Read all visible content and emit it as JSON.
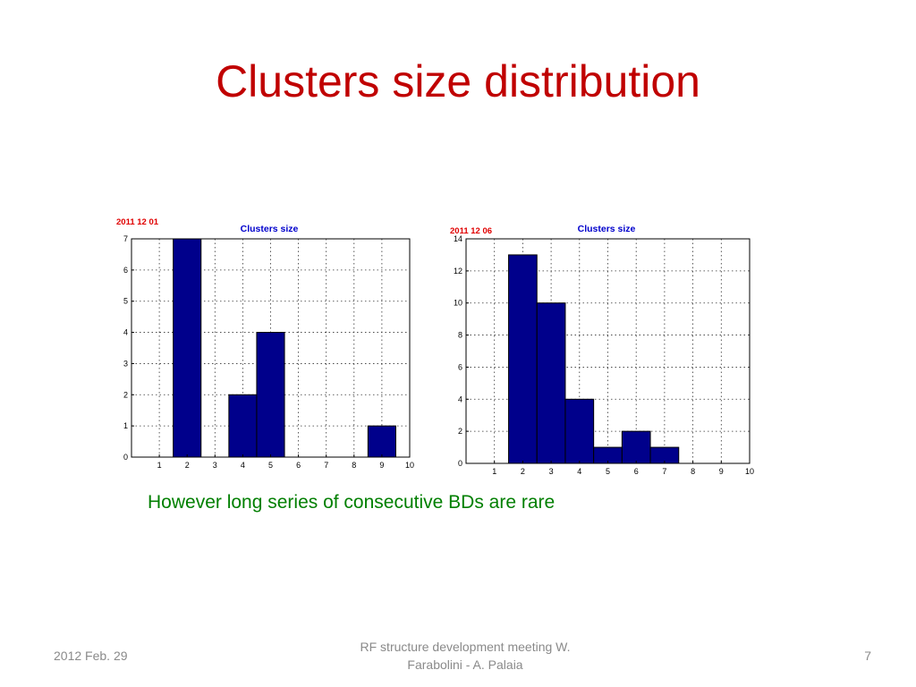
{
  "slide": {
    "title": "Clusters size distribution",
    "subtitle": "However long series of consecutive BDs are rare",
    "footer_date": "2012 Feb. 29",
    "footer_center_line1": "RF structure development meeting  W.",
    "footer_center_line2": "Farabolini - A. Palaia",
    "page_number": "7"
  },
  "colors": {
    "title": "#c00000",
    "subtitle": "#007f00",
    "bar_fill": "#00008b",
    "chart_title": "#0000cc",
    "date_label": "#e00000",
    "footer": "#8a8a8a"
  },
  "chart_data": [
    {
      "type": "bar",
      "title": "Clusters size",
      "date_label": "2011 12 01",
      "x": [
        1,
        2,
        3,
        4,
        5,
        6,
        7,
        8,
        9,
        10
      ],
      "values": [
        0,
        7,
        0,
        2,
        4,
        0,
        0,
        0,
        1,
        0
      ],
      "xlim": [
        0,
        10
      ],
      "ylim": [
        0,
        7
      ],
      "yticks": [
        0,
        1,
        2,
        3,
        4,
        5,
        6,
        7
      ],
      "xticks": [
        1,
        2,
        3,
        4,
        5,
        6,
        7,
        8,
        9,
        10
      ],
      "grid": true
    },
    {
      "type": "bar",
      "title": "Clusters size",
      "date_label": "2011 12 06",
      "x": [
        1,
        2,
        3,
        4,
        5,
        6,
        7,
        8,
        9,
        10
      ],
      "values": [
        0,
        13,
        10,
        4,
        1,
        2,
        1,
        0,
        0,
        0
      ],
      "xlim": [
        0,
        10
      ],
      "ylim": [
        0,
        14
      ],
      "yticks": [
        0,
        2,
        4,
        6,
        8,
        10,
        12,
        14
      ],
      "xticks": [
        1,
        2,
        3,
        4,
        5,
        6,
        7,
        8,
        9,
        10
      ],
      "grid": true
    }
  ]
}
